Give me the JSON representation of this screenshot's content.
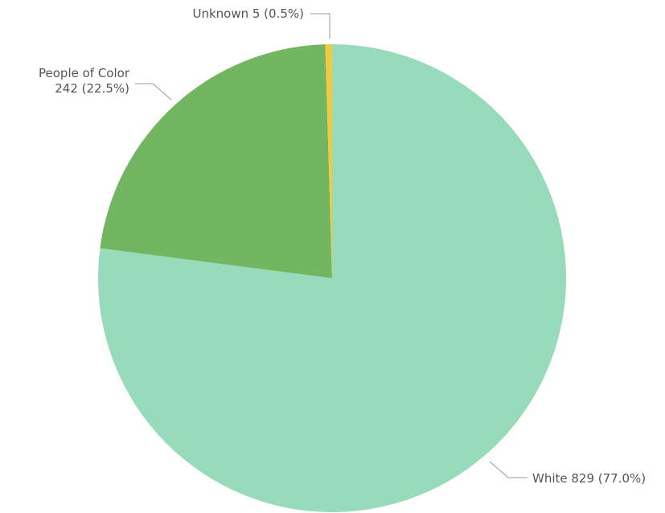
{
  "chart_data": {
    "type": "pie",
    "start_angle_deg": 0,
    "direction": "clockwise",
    "slices": [
      {
        "name": "White",
        "value": 829,
        "percent": 77.0,
        "color": "#98dbbb",
        "label_lines": [
          "White 829 (77.0%)"
        ]
      },
      {
        "name": "People of Color",
        "value": 242,
        "percent": 22.5,
        "color": "#73b662",
        "label_lines": [
          "People of Color",
          "242 (22.5%)"
        ]
      },
      {
        "name": "Unknown",
        "value": 5,
        "percent": 0.5,
        "color": "#f2c93f",
        "label_lines": [
          "Unknown 5 (0.5%)"
        ]
      }
    ]
  }
}
